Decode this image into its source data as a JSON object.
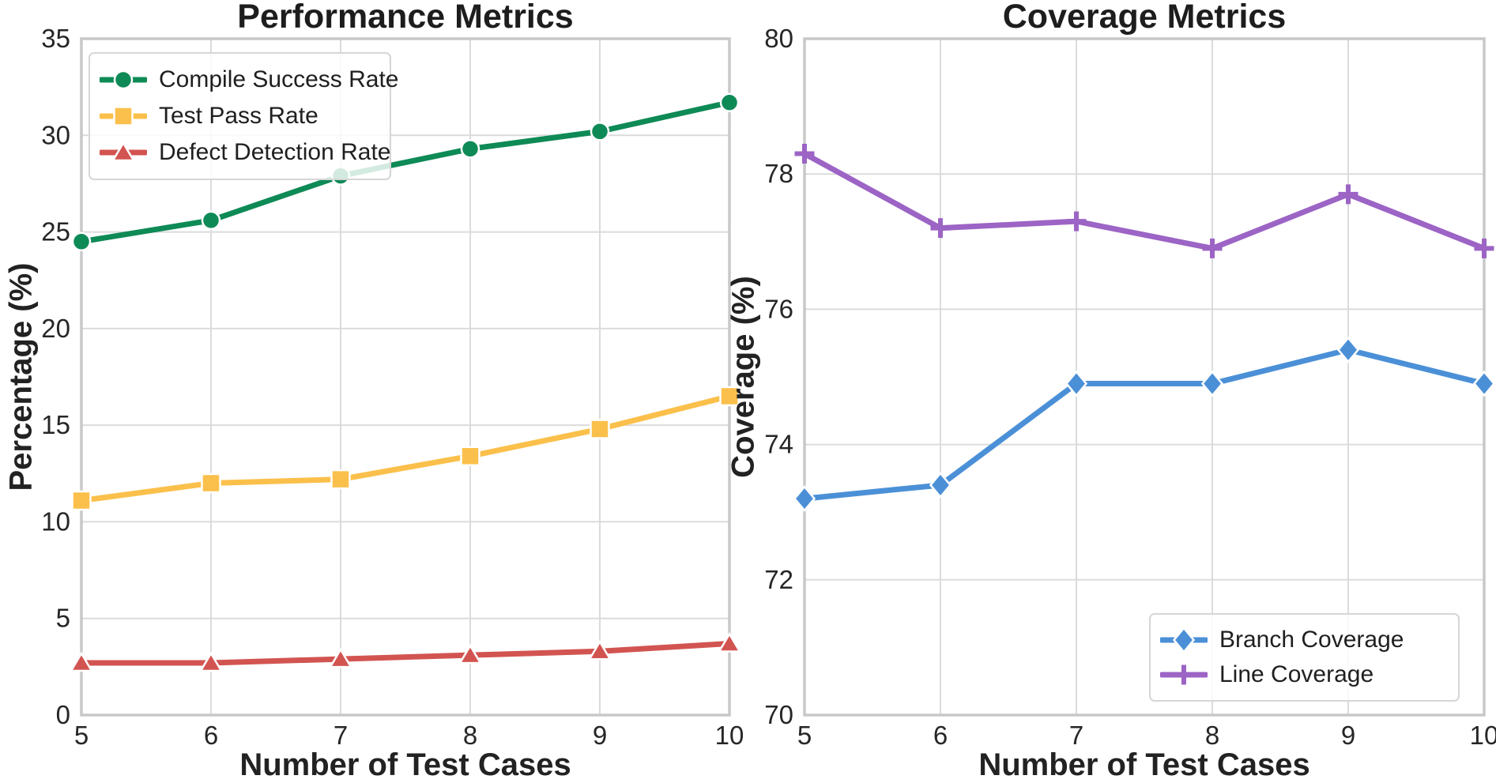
{
  "figure": {
    "background": "#ffffff",
    "text_color": "#222222",
    "grid_color": "#dbdbdb",
    "spine_color": "#c8c8c8"
  },
  "chart_data": [
    {
      "type": "line",
      "title": "Performance Metrics",
      "xlabel": "Number of Test Cases",
      "ylabel": "Percentage (%)",
      "x": [
        5,
        6,
        7,
        8,
        9,
        10
      ],
      "xlim": [
        5,
        10
      ],
      "ylim": [
        0,
        35
      ],
      "xticks": [
        5,
        6,
        7,
        8,
        9,
        10
      ],
      "yticks": [
        0,
        5,
        10,
        15,
        20,
        25,
        30,
        35
      ],
      "grid": true,
      "legend_position": "upper-left",
      "series": [
        {
          "name": "Compile Success Rate",
          "marker": "circle",
          "color": "#0e8a56",
          "values": [
            24.5,
            25.6,
            27.9,
            29.3,
            30.2,
            31.7
          ]
        },
        {
          "name": "Test Pass Rate",
          "marker": "square",
          "color": "#fbc04b",
          "values": [
            11.1,
            12.0,
            12.2,
            13.4,
            14.8,
            16.5
          ]
        },
        {
          "name": "Defect Detection Rate",
          "marker": "triangle-up",
          "color": "#d25451",
          "values": [
            2.7,
            2.7,
            2.9,
            3.1,
            3.3,
            3.7
          ]
        }
      ]
    },
    {
      "type": "line",
      "title": "Coverage Metrics",
      "xlabel": "Number of Test Cases",
      "ylabel": "Coverage (%)",
      "x": [
        5,
        6,
        7,
        8,
        9,
        10
      ],
      "xlim": [
        5,
        10
      ],
      "ylim": [
        70,
        80
      ],
      "xticks": [
        5,
        6,
        7,
        8,
        9,
        10
      ],
      "yticks": [
        70,
        72,
        74,
        76,
        78,
        80
      ],
      "grid": true,
      "legend_position": "lower-right",
      "series": [
        {
          "name": "Branch Coverage",
          "marker": "diamond",
          "color": "#4b90d7",
          "values": [
            73.2,
            73.4,
            74.9,
            74.9,
            75.4,
            74.9
          ]
        },
        {
          "name": "Line Coverage",
          "marker": "plus",
          "color": "#9c64c5",
          "values": [
            78.3,
            77.2,
            77.3,
            76.9,
            77.7,
            76.9
          ]
        }
      ]
    }
  ]
}
